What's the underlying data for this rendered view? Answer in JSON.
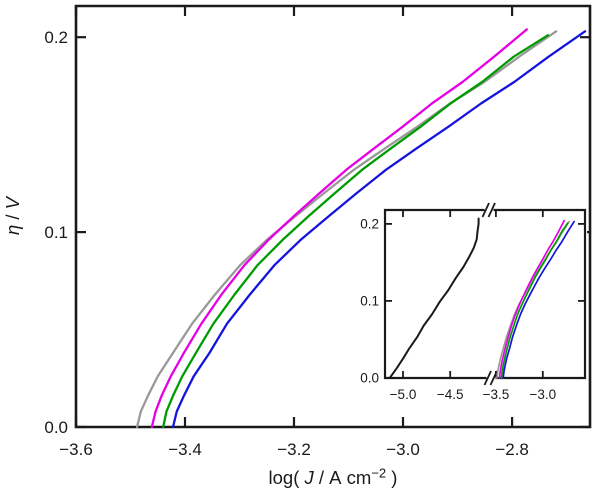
{
  "chart_data": {
    "type": "line",
    "title": "",
    "xlabel": {
      "text": "log( J / A cm−2 )",
      "prefix": "log( ",
      "variable": "J",
      "mid": " / A cm",
      "superscript": "−2",
      "suffix": " )"
    },
    "ylabel": {
      "text": "η / V",
      "variable": "η",
      "mid": " / ",
      "unit": "V"
    },
    "colors": {
      "axis_ink": "#1a1a1a",
      "background": "#ffffff",
      "gray": "#999999",
      "magenta": "#e600e6",
      "green": "#009b00",
      "blue": "#1414dc",
      "black": "#1a1a1a"
    },
    "main_axes": {
      "xlim": [
        -3.6,
        -2.657
      ],
      "ylim": [
        0,
        0.216
      ],
      "xticks": [
        -3.6,
        -3.4,
        -3.2,
        -3.0,
        -2.8
      ],
      "xtick_labels": [
        "−3.6",
        "−3.4",
        "−3.2",
        "−3.0",
        "−2.8"
      ],
      "yticks": [
        0,
        0.1,
        0.2
      ],
      "ytick_labels": [
        "0.0",
        "0.1",
        "0.2"
      ],
      "grid": false,
      "legend": "none",
      "series": [
        {
          "name": "gray",
          "color": "#999999",
          "points": [
            [
              -3.488,
              0
            ],
            [
              -3.481,
              0.008
            ],
            [
              -3.468,
              0.016
            ],
            [
              -3.45,
              0.026
            ],
            [
              -3.422,
              0.038
            ],
            [
              -3.387,
              0.053
            ],
            [
              -3.345,
              0.068
            ],
            [
              -3.299,
              0.083
            ],
            [
              -3.25,
              0.096
            ],
            [
              -3.198,
              0.108
            ],
            [
              -3.145,
              0.12
            ],
            [
              -3.09,
              0.132
            ],
            [
              -3.033,
              0.143
            ],
            [
              -2.974,
              0.154
            ],
            [
              -2.914,
              0.166
            ],
            [
              -2.851,
              0.177
            ],
            [
              -2.787,
              0.19
            ],
            [
              -2.719,
              0.203
            ]
          ]
        },
        {
          "name": "magenta",
          "color": "#e600e6",
          "points": [
            [
              -3.461,
              0
            ],
            [
              -3.454,
              0.008
            ],
            [
              -3.443,
              0.016
            ],
            [
              -3.426,
              0.026
            ],
            [
              -3.402,
              0.038
            ],
            [
              -3.37,
              0.053
            ],
            [
              -3.333,
              0.068
            ],
            [
              -3.291,
              0.083
            ],
            [
              -3.247,
              0.096
            ],
            [
              -3.201,
              0.108
            ],
            [
              -3.153,
              0.12
            ],
            [
              -3.104,
              0.132
            ],
            [
              -3.053,
              0.143
            ],
            [
              -3.001,
              0.154
            ],
            [
              -2.947,
              0.166
            ],
            [
              -2.891,
              0.177
            ],
            [
              -2.833,
              0.19
            ],
            [
              -2.773,
              0.204
            ]
          ]
        },
        {
          "name": "green",
          "color": "#009b00",
          "points": [
            [
              -3.44,
              0
            ],
            [
              -3.434,
              0.008
            ],
            [
              -3.422,
              0.016
            ],
            [
              -3.405,
              0.026
            ],
            [
              -3.38,
              0.038
            ],
            [
              -3.348,
              0.053
            ],
            [
              -3.309,
              0.068
            ],
            [
              -3.267,
              0.083
            ],
            [
              -3.221,
              0.096
            ],
            [
              -3.174,
              0.108
            ],
            [
              -3.125,
              0.12
            ],
            [
              -3.075,
              0.132
            ],
            [
              -3.022,
              0.143
            ],
            [
              -2.968,
              0.154
            ],
            [
              -2.913,
              0.166
            ],
            [
              -2.855,
              0.177
            ],
            [
              -2.797,
              0.19
            ],
            [
              -2.734,
              0.201
            ]
          ]
        },
        {
          "name": "blue",
          "color": "#1414dc",
          "points": [
            [
              -3.422,
              0
            ],
            [
              -3.415,
              0.008
            ],
            [
              -3.402,
              0.016
            ],
            [
              -3.384,
              0.026
            ],
            [
              -3.355,
              0.038
            ],
            [
              -3.323,
              0.053
            ],
            [
              -3.281,
              0.068
            ],
            [
              -3.236,
              0.083
            ],
            [
              -3.188,
              0.096
            ],
            [
              -3.137,
              0.108
            ],
            [
              -3.085,
              0.12
            ],
            [
              -3.031,
              0.132
            ],
            [
              -2.975,
              0.143
            ],
            [
              -2.917,
              0.154
            ],
            [
              -2.857,
              0.166
            ],
            [
              -2.796,
              0.177
            ],
            [
              -2.733,
              0.19
            ],
            [
              -2.666,
              0.203
            ]
          ]
        }
      ]
    },
    "inset_axes": {
      "axis_break": true,
      "xlim_left": [
        -5.19,
        -4.1
      ],
      "xlim_right": [
        -3.52,
        -2.55
      ],
      "ylim": [
        0,
        0.218
      ],
      "xticks_left": [
        -5.0,
        -4.5
      ],
      "xtick_labels_left": [
        "−5.0",
        "−4.5"
      ],
      "xticks_right": [
        -3.5,
        -3.0
      ],
      "xtick_labels_right": [
        "−3.5",
        "−3.0"
      ],
      "yticks": [
        0,
        0.1,
        0.2
      ],
      "ytick_labels": [
        "0.0",
        "0.1",
        "0.2"
      ],
      "replots_main_series": true,
      "series_black": {
        "name": "black",
        "color": "#1a1a1a",
        "points": [
          [
            -5.14,
            0
          ],
          [
            -5.07,
            0.012
          ],
          [
            -5.0,
            0.025
          ],
          [
            -4.93,
            0.039
          ],
          [
            -4.85,
            0.053
          ],
          [
            -4.78,
            0.068
          ],
          [
            -4.69,
            0.083
          ],
          [
            -4.61,
            0.099
          ],
          [
            -4.52,
            0.114
          ],
          [
            -4.44,
            0.13
          ],
          [
            -4.36,
            0.144
          ],
          [
            -4.3,
            0.157
          ],
          [
            -4.25,
            0.169
          ],
          [
            -4.22,
            0.18
          ],
          [
            -4.21,
            0.191
          ],
          [
            -4.2,
            0.2
          ],
          [
            -4.2,
            0.207
          ]
        ]
      }
    }
  }
}
